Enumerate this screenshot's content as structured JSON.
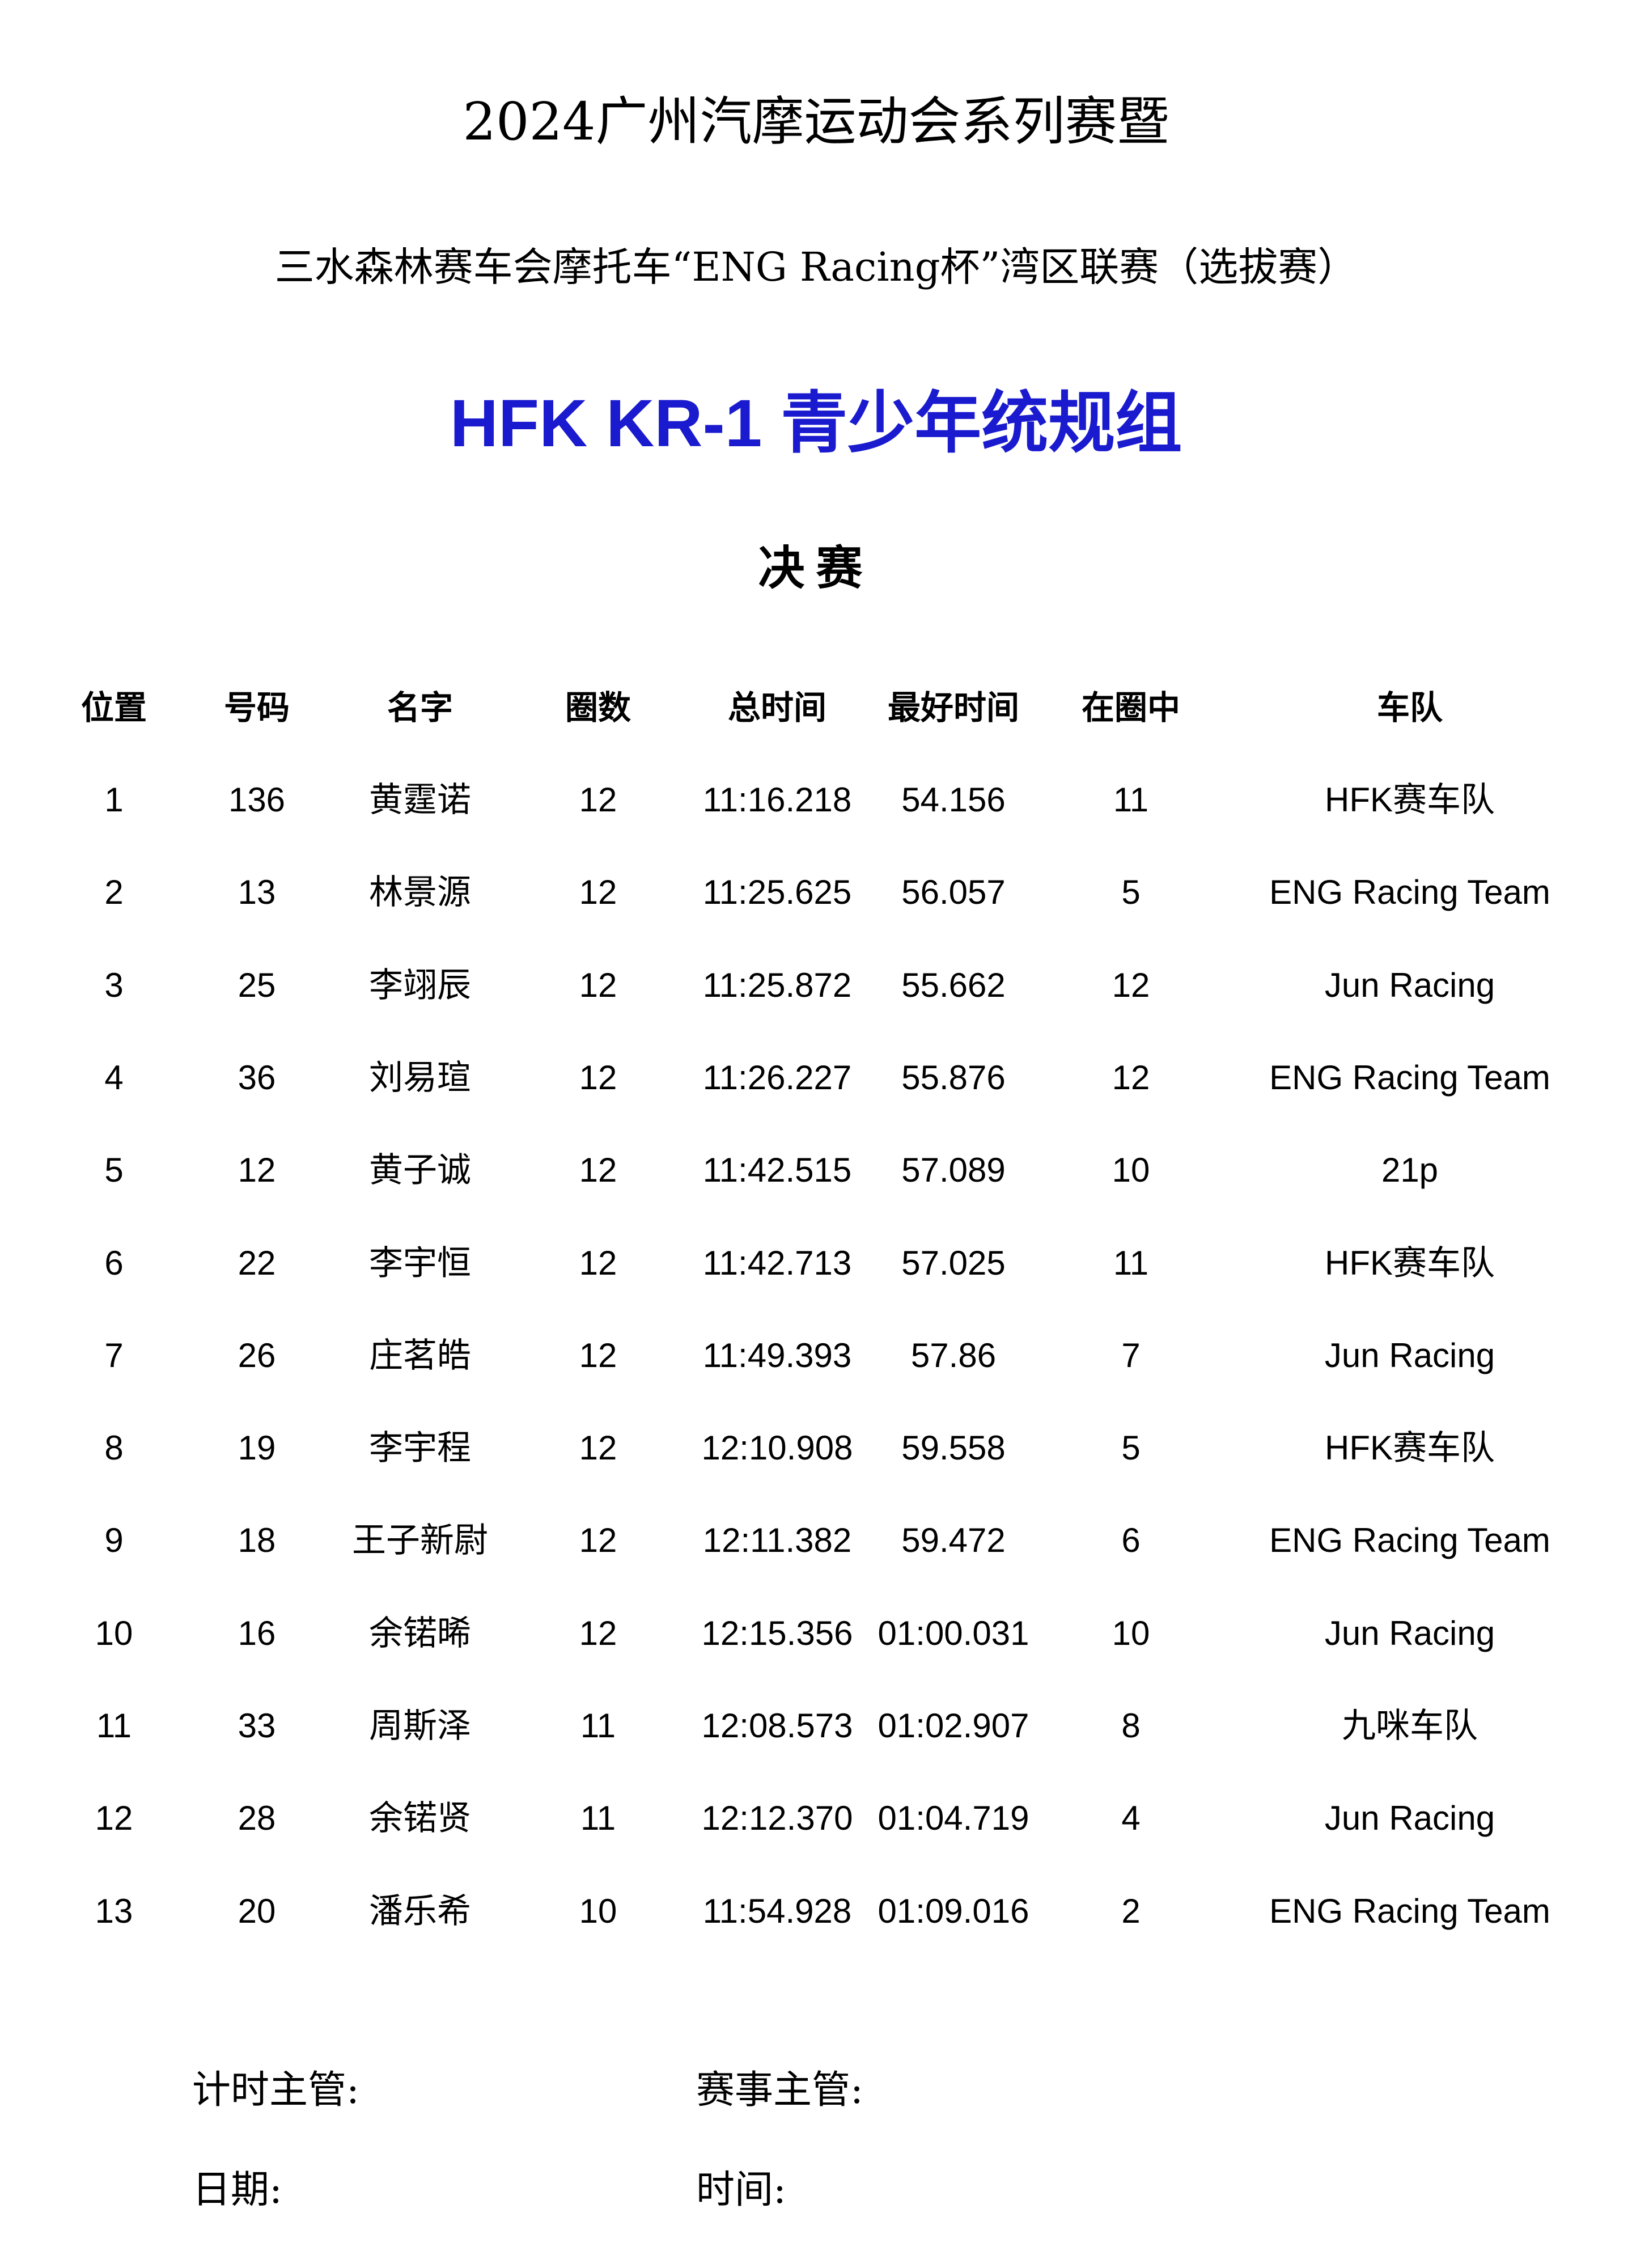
{
  "title": "2024广州汽摩运动会系列赛暨",
  "subtitle": "三水森林赛车会摩托车“ENG Racing杯”湾区联赛（选拔赛）",
  "group": "HFK KR-1 青少年统规组",
  "stage": "决赛",
  "accent_color": "#1a1acf",
  "columns": [
    "位置",
    "号码",
    "名字",
    "圈数",
    "总时间",
    "最好时间",
    "在圈中",
    "车队"
  ],
  "rows": [
    [
      "1",
      "136",
      "黄霆诺",
      "12",
      "11:16.218",
      "54.156",
      "11",
      "HFK赛车队"
    ],
    [
      "2",
      "13",
      "林景源",
      "12",
      "11:25.625",
      "56.057",
      "5",
      "ENG Racing Team"
    ],
    [
      "3",
      "25",
      "李翊辰",
      "12",
      "11:25.872",
      "55.662",
      "12",
      "Jun Racing"
    ],
    [
      "4",
      "36",
      "刘易瑄",
      "12",
      "11:26.227",
      "55.876",
      "12",
      "ENG Racing Team"
    ],
    [
      "5",
      "12",
      "黄子诚",
      "12",
      "11:42.515",
      "57.089",
      "10",
      "21p"
    ],
    [
      "6",
      "22",
      "李宇恒",
      "12",
      "11:42.713",
      "57.025",
      "11",
      "HFK赛车队"
    ],
    [
      "7",
      "26",
      "庄茗皓",
      "12",
      "11:49.393",
      "57.86",
      "7",
      "Jun Racing"
    ],
    [
      "8",
      "19",
      "李宇程",
      "12",
      "12:10.908",
      "59.558",
      "5",
      "HFK赛车队"
    ],
    [
      "9",
      "18",
      "王子新尉",
      "12",
      "12:11.382",
      "59.472",
      "6",
      "ENG Racing Team"
    ],
    [
      "10",
      "16",
      "余锘晞",
      "12",
      "12:15.356",
      "01:00.031",
      "10",
      "Jun Racing"
    ],
    [
      "11",
      "33",
      "周斯泽",
      "11",
      "12:08.573",
      "01:02.907",
      "8",
      "九咪车队"
    ],
    [
      "12",
      "28",
      "余锘贤",
      "11",
      "12:12.370",
      "01:04.719",
      "4",
      "Jun Racing"
    ],
    [
      "13",
      "20",
      "潘乐希",
      "10",
      "11:54.928",
      "01:09.016",
      "2",
      "ENG Racing Team"
    ]
  ],
  "footer": {
    "timing_supervisor": "计时主管:",
    "race_supervisor": "赛事主管:",
    "date": "日期:",
    "time": "时间:"
  }
}
